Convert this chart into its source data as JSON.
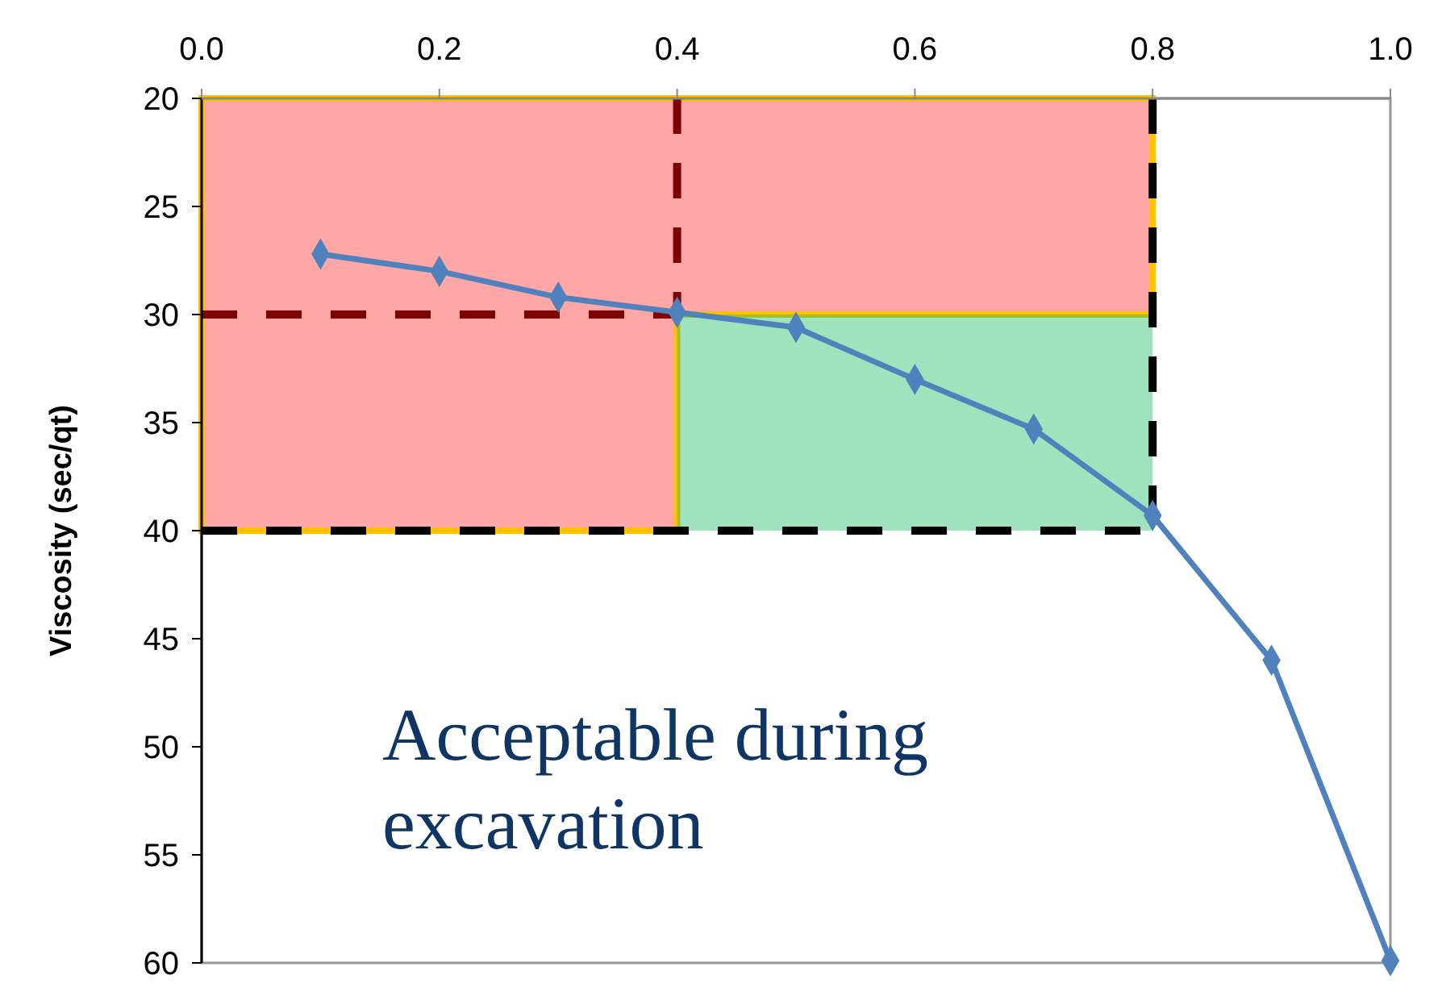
{
  "chart_data": {
    "type": "line",
    "ylabel": "Viscosity (sec/qt)",
    "x": [
      0.1,
      0.2,
      0.3,
      0.4,
      0.5,
      0.6,
      0.7,
      0.8,
      0.9,
      1.0
    ],
    "series": [
      {
        "color": "#4f81bd",
        "values": [
          27.2,
          28.0,
          29.2,
          29.9,
          30.6,
          33.0,
          35.3,
          39.3,
          46.0,
          59.9
        ]
      }
    ],
    "xlim": [
      0,
      1
    ],
    "xticks": [
      {
        "value": 0,
        "label": "0.0"
      },
      0.2,
      0.4,
      0.6,
      0.8,
      {
        "value": 1,
        "label": "1.0"
      }
    ],
    "ylim": [
      60,
      20
    ],
    "yticks": [
      20,
      25,
      30,
      35,
      40,
      45,
      50,
      55,
      60
    ],
    "marker": "diamond",
    "line_style": "solid",
    "grid": false,
    "ref_lines": [
      {
        "axis": "x",
        "value": 0.4,
        "color": "#7f0000",
        "line_style": "dashed"
      },
      {
        "axis": "y",
        "value": 30,
        "color": "#7f0000",
        "line_style": "dashed"
      },
      {
        "axis": "x",
        "value": 0.8,
        "color": "#000000",
        "line_style": "dashed"
      },
      {
        "axis": "y",
        "value": 40,
        "color": "#000000",
        "line_style": "dashed"
      }
    ],
    "annotations": [
      "Acceptable during excavation"
    ]
  }
}
